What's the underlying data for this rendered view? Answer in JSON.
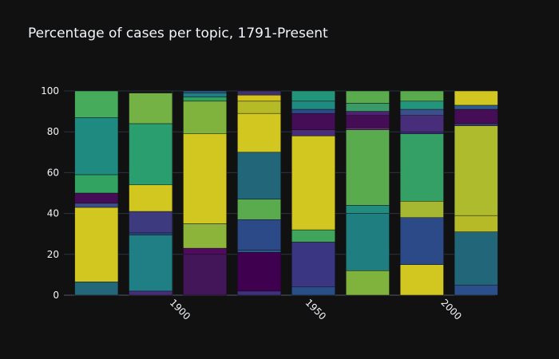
{
  "chart_data": {
    "type": "bar",
    "stacked": true,
    "title": "Percentage of cases per topic, 1791-Present",
    "xlabel": "",
    "ylabel": "",
    "xlim": [
      1860,
      2019
    ],
    "ylim": [
      0,
      100
    ],
    "x_ticks": [
      1900,
      1950,
      2000
    ],
    "y_ticks": [
      0,
      20,
      40,
      60,
      80,
      100
    ],
    "grid": true,
    "legend": "none",
    "bar_width": 16,
    "bars": [
      {
        "x": 1872,
        "segments": [
          {
            "start": 0,
            "end": 6.5,
            "color": "#22677a"
          },
          {
            "start": 6.5,
            "end": 43,
            "color": "#d2c720"
          },
          {
            "start": 43,
            "end": 45,
            "color": "#3b4f8a"
          },
          {
            "start": 45,
            "end": 50,
            "color": "#450d56"
          },
          {
            "start": 50,
            "end": 59,
            "color": "#33a362"
          },
          {
            "start": 59,
            "end": 87,
            "color": "#1f8a80"
          },
          {
            "start": 87,
            "end": 100,
            "color": "#46ac5c"
          }
        ]
      },
      {
        "x": 1892,
        "segments": [
          {
            "start": 0,
            "end": 2,
            "color": "#472d7a"
          },
          {
            "start": 2,
            "end": 29.5,
            "color": "#1f7f85"
          },
          {
            "start": 29.5,
            "end": 30.5,
            "color": "#2c4a88"
          },
          {
            "start": 30.5,
            "end": 41,
            "color": "#3d3a80"
          },
          {
            "start": 41,
            "end": 54,
            "color": "#d2c720"
          },
          {
            "start": 54,
            "end": 84,
            "color": "#2a9e6e"
          },
          {
            "start": 84,
            "end": 99,
            "color": "#74b246"
          }
        ]
      },
      {
        "x": 1912,
        "segments": [
          {
            "start": 0,
            "end": 20,
            "color": "#43165a"
          },
          {
            "start": 20,
            "end": 23,
            "color": "#510b5e"
          },
          {
            "start": 23,
            "end": 35,
            "color": "#8cb33a"
          },
          {
            "start": 35,
            "end": 79,
            "color": "#d2c720"
          },
          {
            "start": 79,
            "end": 95,
            "color": "#80b23e"
          },
          {
            "start": 95,
            "end": 97,
            "color": "#33a060"
          },
          {
            "start": 97,
            "end": 99,
            "color": "#1f7f85"
          },
          {
            "start": 99,
            "end": 100,
            "color": "#2c5c8c"
          }
        ]
      },
      {
        "x": 1932,
        "segments": [
          {
            "start": 0,
            "end": 2,
            "color": "#3f3080"
          },
          {
            "start": 2,
            "end": 21,
            "color": "#3f0050"
          },
          {
            "start": 21,
            "end": 22,
            "color": "#2a5a8a"
          },
          {
            "start": 22,
            "end": 37,
            "color": "#2c4a88"
          },
          {
            "start": 37,
            "end": 47,
            "color": "#5aab4e"
          },
          {
            "start": 47,
            "end": 70,
            "color": "#22667a"
          },
          {
            "start": 70,
            "end": 89,
            "color": "#d2c720"
          },
          {
            "start": 89,
            "end": 95,
            "color": "#b5ba26"
          },
          {
            "start": 95,
            "end": 98,
            "color": "#d4c31e"
          },
          {
            "start": 98,
            "end": 100,
            "color": "#42306e"
          }
        ]
      },
      {
        "x": 1952,
        "segments": [
          {
            "start": 0,
            "end": 4,
            "color": "#2a4e88"
          },
          {
            "start": 4,
            "end": 26,
            "color": "#3a3682"
          },
          {
            "start": 26,
            "end": 32,
            "color": "#3fa55a"
          },
          {
            "start": 32,
            "end": 78,
            "color": "#d2c720"
          },
          {
            "start": 78,
            "end": 81,
            "color": "#472d7a"
          },
          {
            "start": 81,
            "end": 89,
            "color": "#450d56"
          },
          {
            "start": 89,
            "end": 91,
            "color": "#2c4a88"
          },
          {
            "start": 91,
            "end": 95,
            "color": "#1f8a80"
          },
          {
            "start": 95,
            "end": 100,
            "color": "#23957a"
          }
        ]
      },
      {
        "x": 1972,
        "segments": [
          {
            "start": 0,
            "end": 12,
            "color": "#80b23e"
          },
          {
            "start": 12,
            "end": 40,
            "color": "#1f7f80"
          },
          {
            "start": 40,
            "end": 44,
            "color": "#228c7e"
          },
          {
            "start": 44,
            "end": 81,
            "color": "#5aab4e"
          },
          {
            "start": 81,
            "end": 82,
            "color": "#6a2c7a"
          },
          {
            "start": 82,
            "end": 88,
            "color": "#450d56"
          },
          {
            "start": 88,
            "end": 90,
            "color": "#4d2270"
          },
          {
            "start": 90,
            "end": 94,
            "color": "#3a9a68"
          },
          {
            "start": 94,
            "end": 100,
            "color": "#5aab4e"
          }
        ]
      },
      {
        "x": 1992,
        "segments": [
          {
            "start": 0,
            "end": 15,
            "color": "#d2c720"
          },
          {
            "start": 15,
            "end": 38,
            "color": "#2c4a88"
          },
          {
            "start": 38,
            "end": 46,
            "color": "#a6b832"
          },
          {
            "start": 46,
            "end": 79,
            "color": "#34a065"
          },
          {
            "start": 79,
            "end": 80,
            "color": "#3a2e7a"
          },
          {
            "start": 80,
            "end": 88,
            "color": "#472d7a"
          },
          {
            "start": 88,
            "end": 91,
            "color": "#3b4f8a"
          },
          {
            "start": 91,
            "end": 95,
            "color": "#23957a"
          },
          {
            "start": 95,
            "end": 100,
            "color": "#5aab4e"
          }
        ]
      },
      {
        "x": 2012,
        "segments": [
          {
            "start": 0,
            "end": 5,
            "color": "#2b4f8a"
          },
          {
            "start": 5,
            "end": 31,
            "color": "#22667a"
          },
          {
            "start": 31,
            "end": 39,
            "color": "#b5ba26"
          },
          {
            "start": 39,
            "end": 83,
            "color": "#aebb2c"
          },
          {
            "start": 83,
            "end": 84,
            "color": "#3c3a80"
          },
          {
            "start": 84,
            "end": 91,
            "color": "#450d56"
          },
          {
            "start": 91,
            "end": 93,
            "color": "#2c5c8c"
          },
          {
            "start": 93,
            "end": 100,
            "color": "#d2c720"
          }
        ]
      }
    ]
  }
}
